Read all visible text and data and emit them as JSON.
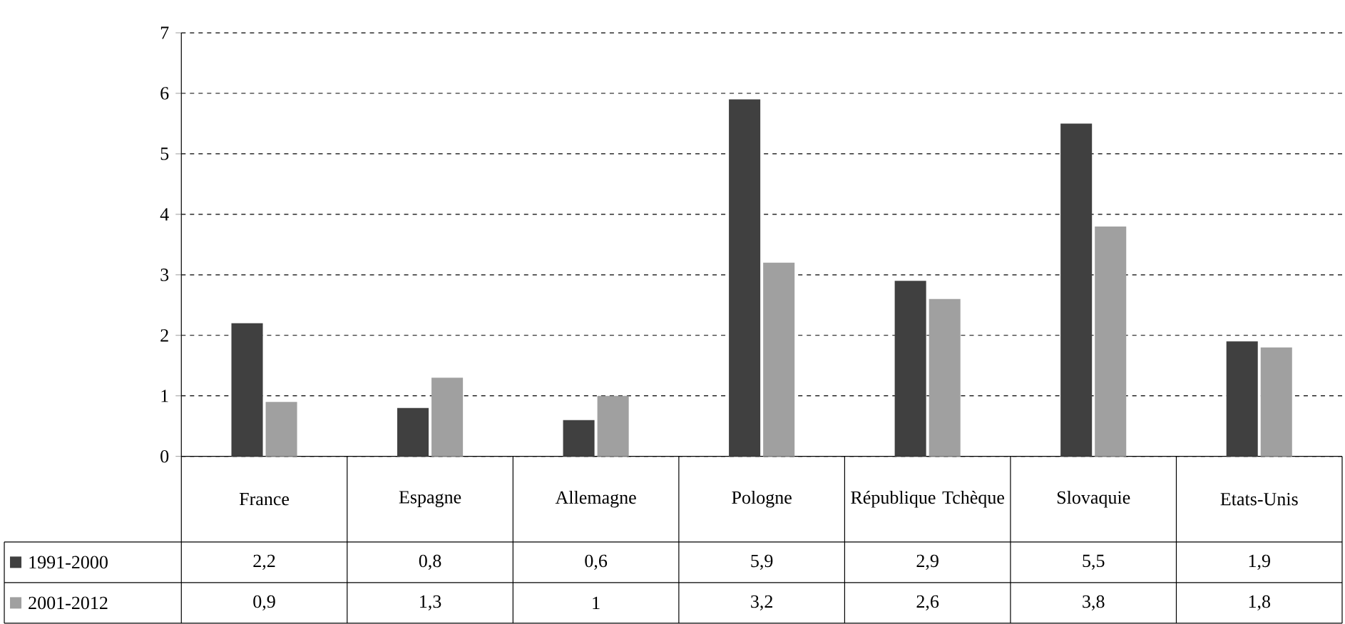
{
  "chart_data": {
    "type": "bar",
    "categories": [
      "France",
      "Espagne",
      "Allemagne",
      "Pologne",
      "République Tchèque",
      "Slovaquie",
      "Etats-Unis"
    ],
    "series": [
      {
        "name": "1991-2000",
        "color": "#404040",
        "values": [
          2.2,
          0.8,
          0.6,
          5.9,
          2.9,
          5.5,
          1.9
        ],
        "value_labels": [
          "2,2",
          "0,8",
          "0,6",
          "5,9",
          "2,9",
          "5,5",
          "1,9"
        ]
      },
      {
        "name": "2001-2012",
        "color": "#a0a0a0",
        "values": [
          0.9,
          1.3,
          1,
          3.2,
          2.6,
          3.8,
          1.8
        ],
        "value_labels": [
          "0,9",
          "1,3",
          "1",
          "3,2",
          "2,6",
          "3,8",
          "1,8"
        ]
      }
    ],
    "ylim": [
      0,
      7
    ],
    "yticks": [
      0,
      1,
      2,
      3,
      4,
      5,
      6,
      7
    ],
    "grid": "y",
    "legend": "bottom"
  }
}
